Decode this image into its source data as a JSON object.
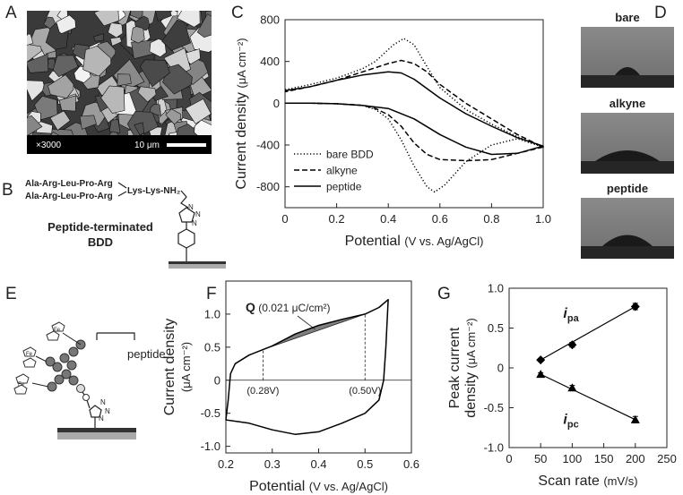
{
  "panel_labels": [
    "A",
    "B",
    "C",
    "D",
    "E",
    "F",
    "G"
  ],
  "sem": {
    "magnification": "×3000",
    "scale_bar": "10 μm"
  },
  "structure": {
    "chain1": "Ala-Arg-Leu-Pro-Arg",
    "chain2": "Ala-Arg-Leu-Pro-Arg",
    "linker": "Lys-Lys-NH₂",
    "atoms": [
      "N",
      "N",
      "N"
    ],
    "caption": [
      "Peptide-terminated",
      "BDD"
    ]
  },
  "contact_angle": [
    "bare",
    "alkyne",
    "peptide"
  ],
  "schematic": {
    "label": "peptide",
    "iron": [
      "Fe",
      "Fe",
      "Fe"
    ],
    "atoms": [
      "N",
      "N",
      "N"
    ]
  },
  "chart_data": [
    {
      "type": "line",
      "x_label": "Potential",
      "x_unit": "(V vs. Ag/AgCl)",
      "y_label": "Current density",
      "y_unit": "(μA cm⁻²)",
      "xlim": [
        0,
        1
      ],
      "xticks": [
        0,
        0.2,
        0.4,
        0.6,
        0.8,
        {
          "value": 1,
          "label": "1.0"
        }
      ],
      "ylim": [
        -1000,
        800
      ],
      "yticks": [
        800,
        400,
        0,
        -400,
        -800
      ],
      "legend": "lower left",
      "series": [
        {
          "name": "bare BDD",
          "color": "#000000",
          "dash": "dotted",
          "x": [
            0,
            0.1,
            0.2,
            0.3,
            0.35,
            0.4,
            0.45,
            0.5,
            0.55,
            0.58,
            0.62,
            0.7,
            0.8,
            0.9,
            1.0,
            0.9,
            0.8,
            0.7,
            0.6,
            0.55,
            0.5,
            0.46,
            0.42,
            0.35,
            0.3,
            0.2,
            0.1,
            0
          ],
          "values": [
            0,
            0,
            -5,
            -20,
            -60,
            -150,
            -350,
            -600,
            -800,
            -850,
            -780,
            -560,
            -400,
            -340,
            -420,
            -320,
            -200,
            -60,
            150,
            350,
            560,
            620,
            560,
            400,
            330,
            240,
            180,
            130
          ]
        },
        {
          "name": "alkyne",
          "color": "#000000",
          "dash": "dashed",
          "x": [
            0,
            0.1,
            0.2,
            0.3,
            0.35,
            0.4,
            0.45,
            0.5,
            0.55,
            0.6,
            0.7,
            0.8,
            0.9,
            1.0,
            0.9,
            0.8,
            0.7,
            0.6,
            0.55,
            0.5,
            0.45,
            0.4,
            0.3,
            0.2,
            0.1,
            0
          ],
          "values": [
            0,
            0,
            -5,
            -20,
            -50,
            -110,
            -220,
            -380,
            -490,
            -540,
            -550,
            -540,
            -480,
            -420,
            -300,
            -150,
            0,
            180,
            300,
            380,
            410,
            380,
            300,
            220,
            160,
            110
          ]
        },
        {
          "name": "peptide",
          "color": "#000000",
          "dash": "solid",
          "x": [
            0,
            0.1,
            0.2,
            0.3,
            0.4,
            0.5,
            0.6,
            0.7,
            0.8,
            0.9,
            1.0,
            0.9,
            0.8,
            0.7,
            0.6,
            0.5,
            0.45,
            0.4,
            0.3,
            0.2,
            0.1,
            0
          ],
          "values": [
            0,
            0,
            -5,
            -20,
            -50,
            -150,
            -300,
            -420,
            -490,
            -480,
            -410,
            -330,
            -220,
            -100,
            50,
            230,
            290,
            300,
            270,
            220,
            160,
            120
          ]
        }
      ]
    },
    {
      "type": "line",
      "x_label": "Potential",
      "x_unit": "(V vs. Ag/AgCl)",
      "y_label": "Current density",
      "y_unit": "(μA cm⁻²)",
      "xlim": [
        0.2,
        0.6
      ],
      "xticks": [
        0.2,
        0.3,
        0.4,
        0.5,
        0.6
      ],
      "ylim": [
        -1.1,
        1.5
      ],
      "yticks": [
        {
          "value": -1,
          "label": "-1.0"
        },
        -0.5,
        0,
        0.5,
        {
          "value": 1,
          "label": "1.0"
        }
      ],
      "zero_line": true,
      "shade_color": "#808080",
      "annotation": {
        "symbol": "Q",
        "text": "(0.021 μC/cm²)"
      },
      "markers": [
        {
          "x": 0.28,
          "label": "(0.28V)"
        },
        {
          "x": 0.5,
          "label": "(0.50V)"
        }
      ],
      "series": [
        {
          "color": "#000000",
          "x": [
            0.2,
            0.205,
            0.21,
            0.22,
            0.25,
            0.3,
            0.35,
            0.4,
            0.45,
            0.5,
            0.53,
            0.55,
            0.545,
            0.54,
            0.53,
            0.5,
            0.45,
            0.4,
            0.35,
            0.3,
            0.25,
            0.2
          ],
          "values": [
            -0.6,
            -0.3,
            0.1,
            0.25,
            0.38,
            0.52,
            0.7,
            0.83,
            0.92,
            1.0,
            1.1,
            1.22,
            0.5,
            0,
            -0.3,
            -0.5,
            -0.65,
            -0.78,
            -0.82,
            -0.75,
            -0.65,
            -0.6
          ]
        }
      ]
    },
    {
      "type": "scatter",
      "x_label": "Scan rate",
      "x_unit": "(mV/s)",
      "y_label": [
        "Peak current",
        "density"
      ],
      "y_unit": "(μA cm⁻²)",
      "xlim": [
        0,
        250
      ],
      "xticks": [
        0,
        50,
        100,
        150,
        200,
        250
      ],
      "ylim": [
        -1,
        1
      ],
      "yticks": [
        {
          "value": -1,
          "label": "-1.0"
        },
        -0.5,
        0,
        0.5,
        {
          "value": 1,
          "label": "1.0"
        }
      ],
      "fit_lines": true,
      "series": [
        {
          "name": "i",
          "subscript": "pa",
          "marker": "diamond",
          "color": "#000000",
          "x": [
            50,
            100,
            200
          ],
          "values": [
            0.1,
            0.29,
            0.77
          ],
          "errors": [
            0.02,
            0.03,
            0.04
          ]
        },
        {
          "name": "i",
          "subscript": "pc",
          "marker": "triangle",
          "color": "#000000",
          "x": [
            50,
            100,
            200
          ],
          "values": [
            -0.08,
            -0.25,
            -0.65
          ],
          "errors": [
            0.02,
            0.03,
            0.04
          ]
        }
      ]
    }
  ]
}
